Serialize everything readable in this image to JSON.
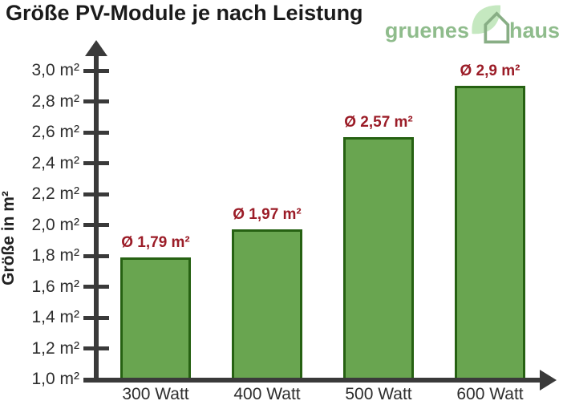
{
  "title": "Größe PV-Module je nach Leistung",
  "logo": {
    "text_left": "gruenes",
    "text_right": "haus",
    "text_color": "#8fbc8c",
    "leaf_color": "#c5e8c0",
    "house_color": "#88ae85"
  },
  "chart_data": {
    "type": "bar",
    "title": "Größe PV-Module je nach Leistung",
    "categories": [
      "300 Watt",
      "400 Watt",
      "500 Watt",
      "600 Watt"
    ],
    "values": [
      1.79,
      1.97,
      2.57,
      2.9
    ],
    "bar_labels": [
      "Ø 1,79 m²",
      "Ø 1,97 m²",
      "Ø 2,57 m²",
      "Ø 2,9 m²"
    ],
    "xlabel": "",
    "ylabel": "Größe in m²",
    "ylim": [
      1.0,
      3.0
    ],
    "ytick_step": 0.2,
    "ytick_labels": [
      "1,0 m²",
      "1,2 m²",
      "1,4 m²",
      "1,6 m²",
      "1,8 m²",
      "2,0 m²",
      "2,2 m²",
      "2,4 m²",
      "2,6 m²",
      "2,8 m²",
      "3,0 m²"
    ],
    "grid": false,
    "legend_position": "none",
    "bar_color": "#69a550",
    "bar_border_color": "#266112",
    "value_label_color": "#9b1c27",
    "axis_color": "#3a3a3a",
    "tick_label_color": "#2d2d2d"
  }
}
